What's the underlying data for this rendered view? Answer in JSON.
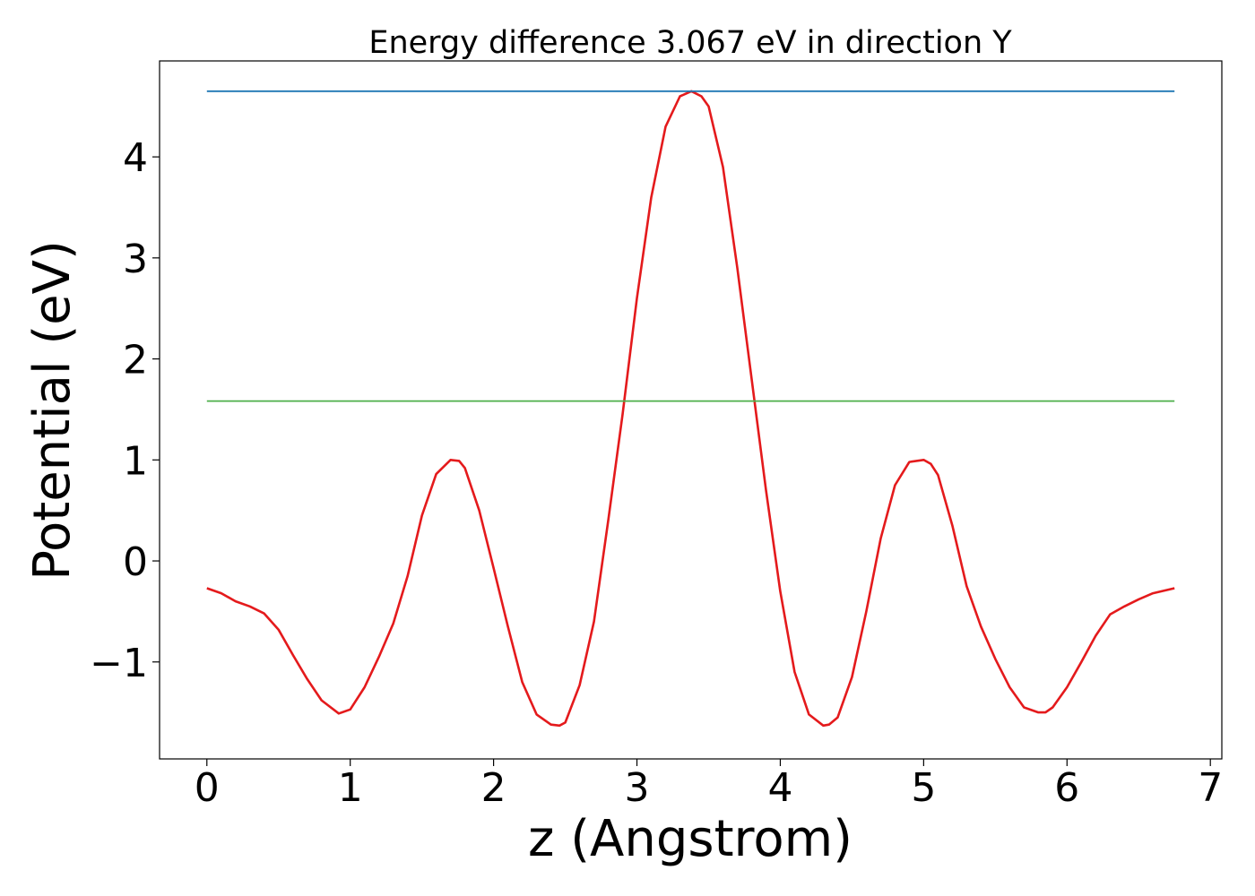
{
  "chart_data": {
    "type": "line",
    "title": "Energy difference 3.067 eV in direction Y",
    "xlabel": "z (Angstrom)",
    "ylabel": "Potential (eV)",
    "xlim": [
      -0.33,
      7.08
    ],
    "ylim": [
      -1.96,
      4.95
    ],
    "xticks": [
      0,
      1,
      2,
      3,
      4,
      5,
      6,
      7
    ],
    "xtick_labels": [
      "0",
      "1",
      "2",
      "3",
      "4",
      "5",
      "6",
      "7"
    ],
    "yticks": [
      -1,
      0,
      1,
      2,
      3,
      4
    ],
    "ytick_labels": [
      "−1",
      "0",
      "1",
      "2",
      "3",
      "4"
    ],
    "grid": false,
    "legend": "none",
    "series": [
      {
        "color": "#e41a1c",
        "x": [
          0,
          0.1,
          0.2,
          0.3,
          0.4,
          0.5,
          0.6,
          0.7,
          0.8,
          0.92,
          1.0,
          1.1,
          1.2,
          1.3,
          1.4,
          1.5,
          1.6,
          1.7,
          1.76,
          1.8,
          1.9,
          2.0,
          2.1,
          2.2,
          2.3,
          2.4,
          2.46,
          2.5,
          2.6,
          2.7,
          2.8,
          2.9,
          3.0,
          3.1,
          3.2,
          3.3,
          3.38,
          3.45,
          3.5,
          3.6,
          3.7,
          3.8,
          3.9,
          4.0,
          4.1,
          4.2,
          4.3,
          4.34,
          4.4,
          4.5,
          4.6,
          4.7,
          4.8,
          4.9,
          5.0,
          5.05,
          5.1,
          5.2,
          5.3,
          5.4,
          5.5,
          5.6,
          5.7,
          5.8,
          5.85,
          5.9,
          6.0,
          6.1,
          6.2,
          6.3,
          6.4,
          6.5,
          6.6,
          6.75
        ],
        "y": [
          -0.27,
          -0.32,
          -0.4,
          -0.45,
          -0.52,
          -0.68,
          -0.93,
          -1.17,
          -1.38,
          -1.51,
          -1.47,
          -1.25,
          -0.95,
          -0.62,
          -0.15,
          0.45,
          0.86,
          1.0,
          0.99,
          0.92,
          0.5,
          -0.07,
          -0.65,
          -1.2,
          -1.52,
          -1.62,
          -1.63,
          -1.6,
          -1.23,
          -0.6,
          0.4,
          1.45,
          2.6,
          3.6,
          4.3,
          4.6,
          4.65,
          4.6,
          4.5,
          3.9,
          2.9,
          1.8,
          0.7,
          -0.3,
          -1.1,
          -1.52,
          -1.63,
          -1.62,
          -1.55,
          -1.15,
          -0.5,
          0.22,
          0.75,
          0.98,
          1.0,
          0.96,
          0.85,
          0.35,
          -0.25,
          -0.65,
          -0.97,
          -1.25,
          -1.45,
          -1.5,
          -1.5,
          -1.45,
          -1.25,
          -1.0,
          -0.74,
          -0.53,
          -0.45,
          -0.38,
          -0.32,
          -0.27
        ]
      },
      {
        "color": "#1f77b4",
        "x": [
          0,
          6.75
        ],
        "y": [
          4.65,
          4.65
        ]
      },
      {
        "color": "#4daf4a",
        "x": [
          0,
          6.75
        ],
        "y": [
          1.583,
          1.583
        ]
      }
    ]
  }
}
